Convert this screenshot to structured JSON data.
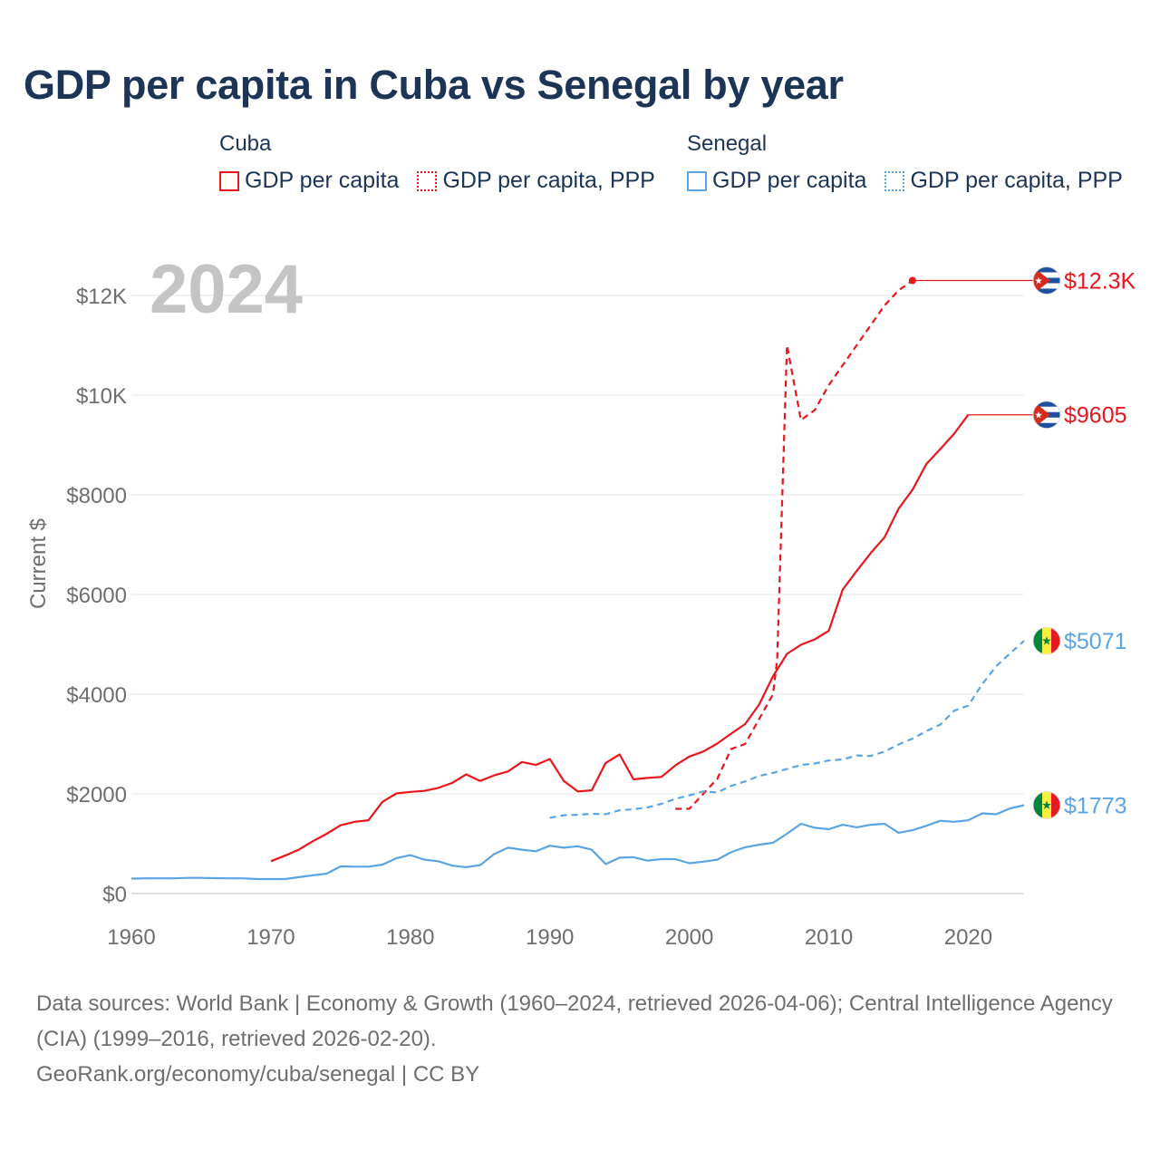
{
  "title": "GDP per capita in Cuba vs Senegal by year",
  "legend": {
    "groups": [
      {
        "name": "Cuba",
        "color": "#e8161b",
        "items": [
          {
            "label": "GDP per capita",
            "style": "solid"
          },
          {
            "label": "GDP per capita, PPP",
            "style": "dotted"
          }
        ]
      },
      {
        "name": "Senegal",
        "color": "#5aa4e3",
        "items": [
          {
            "label": "GDP per capita",
            "style": "solid"
          },
          {
            "label": "GDP per capita, PPP",
            "style": "dotted"
          }
        ]
      }
    ]
  },
  "footer": {
    "sources": "Data sources: World Bank | Economy & Growth (1960–2024, retrieved 2026-04-06); Central Intelligence Agency (CIA) (1999–2016, retrieved 2026-02-20).",
    "credit": "GeoRank.org/economy/cuba/senegal | CC BY"
  },
  "chart_data": {
    "type": "line",
    "title": "GDP per capita in Cuba vs Senegal by year",
    "year_watermark": "2024",
    "xlabel": "",
    "ylabel": "Current $",
    "xlim": [
      1960,
      2024
    ],
    "ylim": [
      0,
      12800
    ],
    "x_ticks": [
      1960,
      1970,
      1980,
      1990,
      2000,
      2010,
      2020
    ],
    "y_ticks": [
      0,
      2000,
      4000,
      6000,
      8000,
      10000,
      12000
    ],
    "y_tick_labels": [
      "$0",
      "$2000",
      "$4000",
      "$6000",
      "$8000",
      "$10K",
      "$12K"
    ],
    "grid": "horizontal",
    "series": [
      {
        "name": "Cuba GDP per capita",
        "color": "#e8161b",
        "dash": "solid",
        "end_label": "$9605",
        "flag": "cuba",
        "extend_to": 2024,
        "points": [
          [
            1970,
            650
          ],
          [
            1971,
            760
          ],
          [
            1972,
            880
          ],
          [
            1973,
            1050
          ],
          [
            1974,
            1200
          ],
          [
            1975,
            1370
          ],
          [
            1976,
            1440
          ],
          [
            1977,
            1470
          ],
          [
            1978,
            1840
          ],
          [
            1979,
            2010
          ],
          [
            1980,
            2040
          ],
          [
            1981,
            2060
          ],
          [
            1982,
            2120
          ],
          [
            1983,
            2220
          ],
          [
            1984,
            2390
          ],
          [
            1985,
            2260
          ],
          [
            1986,
            2370
          ],
          [
            1987,
            2450
          ],
          [
            1988,
            2640
          ],
          [
            1989,
            2580
          ],
          [
            1990,
            2700
          ],
          [
            1991,
            2260
          ],
          [
            1992,
            2050
          ],
          [
            1993,
            2070
          ],
          [
            1994,
            2620
          ],
          [
            1995,
            2790
          ],
          [
            1996,
            2290
          ],
          [
            1997,
            2320
          ],
          [
            1998,
            2340
          ],
          [
            1999,
            2570
          ],
          [
            2000,
            2750
          ],
          [
            2001,
            2850
          ],
          [
            2002,
            3010
          ],
          [
            2003,
            3210
          ],
          [
            2004,
            3400
          ],
          [
            2005,
            3790
          ],
          [
            2006,
            4360
          ],
          [
            2007,
            4810
          ],
          [
            2008,
            4990
          ],
          [
            2009,
            5100
          ],
          [
            2010,
            5270
          ],
          [
            2011,
            6100
          ],
          [
            2012,
            6470
          ],
          [
            2013,
            6830
          ],
          [
            2014,
            7150
          ],
          [
            2015,
            7720
          ],
          [
            2016,
            8100
          ],
          [
            2017,
            8620
          ],
          [
            2018,
            8920
          ],
          [
            2019,
            9230
          ],
          [
            2020,
            9605
          ]
        ]
      },
      {
        "name": "Cuba GDP per capita, PPP",
        "color": "#e8161b",
        "dash": "dashed",
        "end_label": "$12.3K",
        "flag": "cuba",
        "extend_to": 2024,
        "end_marker": true,
        "points": [
          [
            1999,
            1700
          ],
          [
            2000,
            1700
          ],
          [
            2001,
            2000
          ],
          [
            2002,
            2300
          ],
          [
            2003,
            2900
          ],
          [
            2004,
            3000
          ],
          [
            2005,
            3500
          ],
          [
            2006,
            4000
          ],
          [
            2006.3,
            4700
          ],
          [
            2007,
            11000
          ],
          [
            2008,
            9500
          ],
          [
            2009,
            9700
          ],
          [
            2010,
            10200
          ],
          [
            2011,
            10600
          ],
          [
            2012,
            11000
          ],
          [
            2013,
            11400
          ],
          [
            2014,
            11800
          ],
          [
            2015,
            12100
          ],
          [
            2016,
            12300
          ]
        ]
      },
      {
        "name": "Senegal GDP per capita",
        "color": "#5aa4e3",
        "dash": "solid",
        "end_label": "$1773",
        "flag": "senegal",
        "points": [
          [
            1960,
            300
          ],
          [
            1961,
            305
          ],
          [
            1962,
            305
          ],
          [
            1963,
            305
          ],
          [
            1964,
            315
          ],
          [
            1965,
            315
          ],
          [
            1966,
            310
          ],
          [
            1967,
            305
          ],
          [
            1968,
            305
          ],
          [
            1969,
            290
          ],
          [
            1970,
            290
          ],
          [
            1971,
            290
          ],
          [
            1972,
            330
          ],
          [
            1973,
            365
          ],
          [
            1974,
            400
          ],
          [
            1975,
            545
          ],
          [
            1976,
            540
          ],
          [
            1977,
            540
          ],
          [
            1978,
            580
          ],
          [
            1979,
            710
          ],
          [
            1980,
            770
          ],
          [
            1981,
            680
          ],
          [
            1982,
            650
          ],
          [
            1983,
            560
          ],
          [
            1984,
            530
          ],
          [
            1985,
            570
          ],
          [
            1986,
            790
          ],
          [
            1987,
            920
          ],
          [
            1988,
            880
          ],
          [
            1989,
            850
          ],
          [
            1990,
            960
          ],
          [
            1991,
            920
          ],
          [
            1992,
            950
          ],
          [
            1993,
            880
          ],
          [
            1994,
            590
          ],
          [
            1995,
            720
          ],
          [
            1996,
            730
          ],
          [
            1997,
            660
          ],
          [
            1998,
            690
          ],
          [
            1999,
            690
          ],
          [
            2000,
            610
          ],
          [
            2001,
            640
          ],
          [
            2002,
            680
          ],
          [
            2003,
            830
          ],
          [
            2004,
            930
          ],
          [
            2005,
            980
          ],
          [
            2006,
            1020
          ],
          [
            2007,
            1200
          ],
          [
            2008,
            1400
          ],
          [
            2009,
            1320
          ],
          [
            2010,
            1290
          ],
          [
            2011,
            1380
          ],
          [
            2012,
            1330
          ],
          [
            2013,
            1380
          ],
          [
            2014,
            1400
          ],
          [
            2015,
            1220
          ],
          [
            2016,
            1270
          ],
          [
            2017,
            1360
          ],
          [
            2018,
            1460
          ],
          [
            2019,
            1440
          ],
          [
            2020,
            1470
          ],
          [
            2021,
            1610
          ],
          [
            2022,
            1590
          ],
          [
            2023,
            1710
          ],
          [
            2024,
            1773
          ]
        ]
      },
      {
        "name": "Senegal GDP per capita, PPP",
        "color": "#5aa4e3",
        "dash": "dashed",
        "end_label": "$5071",
        "flag": "senegal",
        "points": [
          [
            1990,
            1520
          ],
          [
            1991,
            1570
          ],
          [
            1992,
            1580
          ],
          [
            1993,
            1600
          ],
          [
            1994,
            1590
          ],
          [
            1995,
            1670
          ],
          [
            1996,
            1690
          ],
          [
            1997,
            1730
          ],
          [
            1998,
            1800
          ],
          [
            1999,
            1900
          ],
          [
            2000,
            1970
          ],
          [
            2001,
            2050
          ],
          [
            2002,
            2030
          ],
          [
            2003,
            2160
          ],
          [
            2004,
            2250
          ],
          [
            2005,
            2360
          ],
          [
            2006,
            2420
          ],
          [
            2007,
            2500
          ],
          [
            2008,
            2580
          ],
          [
            2009,
            2610
          ],
          [
            2010,
            2670
          ],
          [
            2011,
            2690
          ],
          [
            2012,
            2770
          ],
          [
            2013,
            2760
          ],
          [
            2014,
            2850
          ],
          [
            2015,
            2990
          ],
          [
            2016,
            3110
          ],
          [
            2017,
            3260
          ],
          [
            2018,
            3390
          ],
          [
            2019,
            3670
          ],
          [
            2020,
            3770
          ],
          [
            2021,
            4200
          ],
          [
            2022,
            4560
          ],
          [
            2023,
            4820
          ],
          [
            2024,
            5071
          ]
        ]
      }
    ]
  }
}
